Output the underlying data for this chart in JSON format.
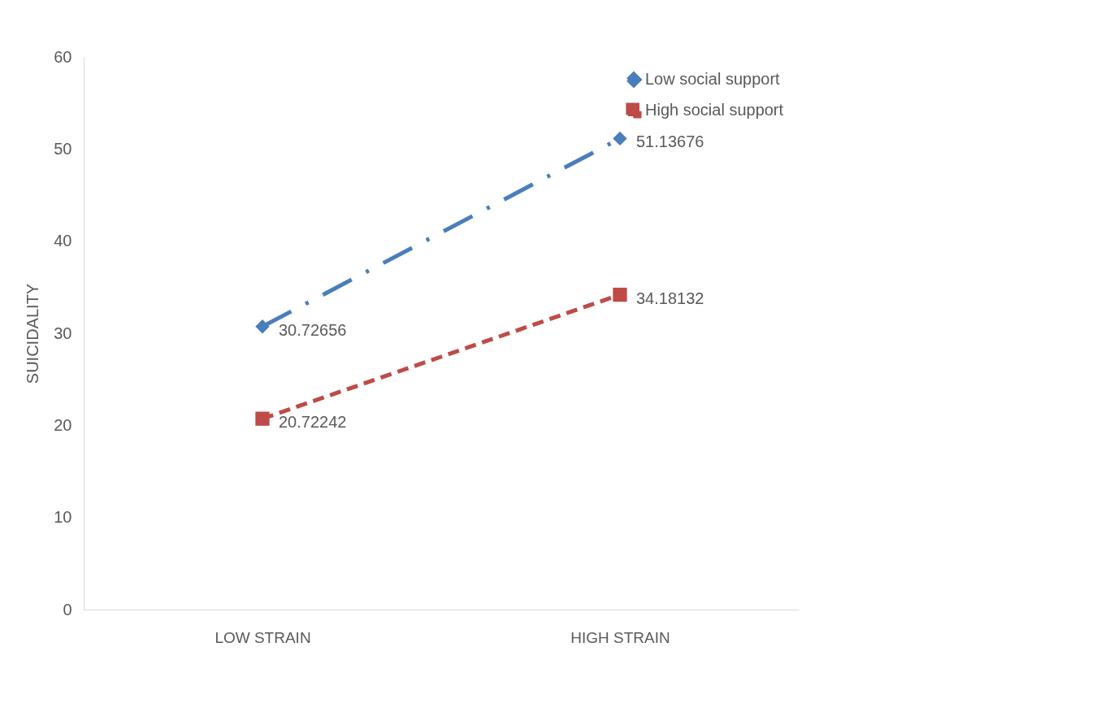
{
  "chart_data": {
    "type": "line",
    "ylabel": "SUICIDALITY",
    "categories": [
      "LOW STRAIN",
      "HIGH STRAIN"
    ],
    "series": [
      {
        "name": "Low social support",
        "color": "#4a7ebb",
        "values": [
          30.72656,
          51.13676
        ],
        "marker": "diamond",
        "line_style": "dashdot"
      },
      {
        "name": "High social support",
        "color": "#be4b48",
        "values": [
          20.72242,
          34.18132
        ],
        "marker": "square",
        "line_style": "dashed"
      }
    ],
    "ylim": [
      0,
      60
    ],
    "yticks": [
      0,
      10,
      20,
      30,
      40,
      50,
      60
    ],
    "grid": false,
    "legend": "top right",
    "data_labels": true
  }
}
